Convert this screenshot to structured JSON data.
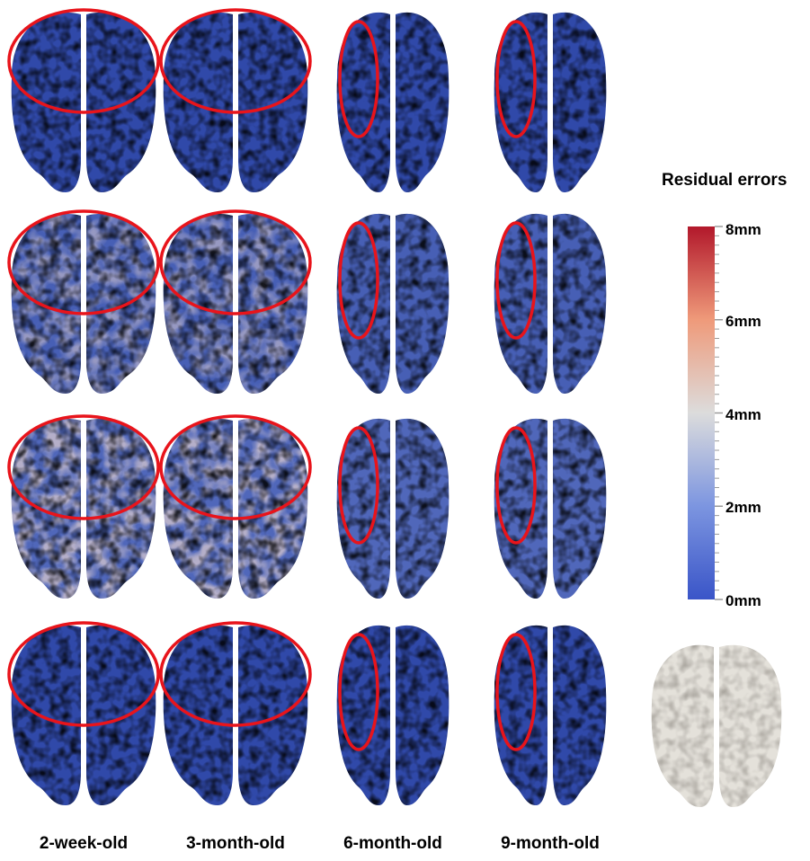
{
  "columns": [
    {
      "label": "2-week-old"
    },
    {
      "label": "3-month-old"
    },
    {
      "label": "6-month-old"
    },
    {
      "label": "9-month-old"
    }
  ],
  "rows": [
    {
      "error_level": 0.05
    },
    {
      "error_level": 0.45
    },
    {
      "error_level": 0.6
    },
    {
      "error_level": 0.05
    }
  ],
  "colorbar": {
    "title": "Residual errors",
    "ticks": [
      "8mm",
      "6mm",
      "4mm",
      "2mm",
      "0mm"
    ],
    "colors": {
      "low": "#3a55c8",
      "mid": "#dcdcdc",
      "high": "#b2182b"
    }
  },
  "colors": {
    "brain_base": "#2d46a8",
    "brain_dark": "#1a2a78",
    "highlight_ellipse": "#e8141b",
    "template_brain": "#e4e1da"
  }
}
